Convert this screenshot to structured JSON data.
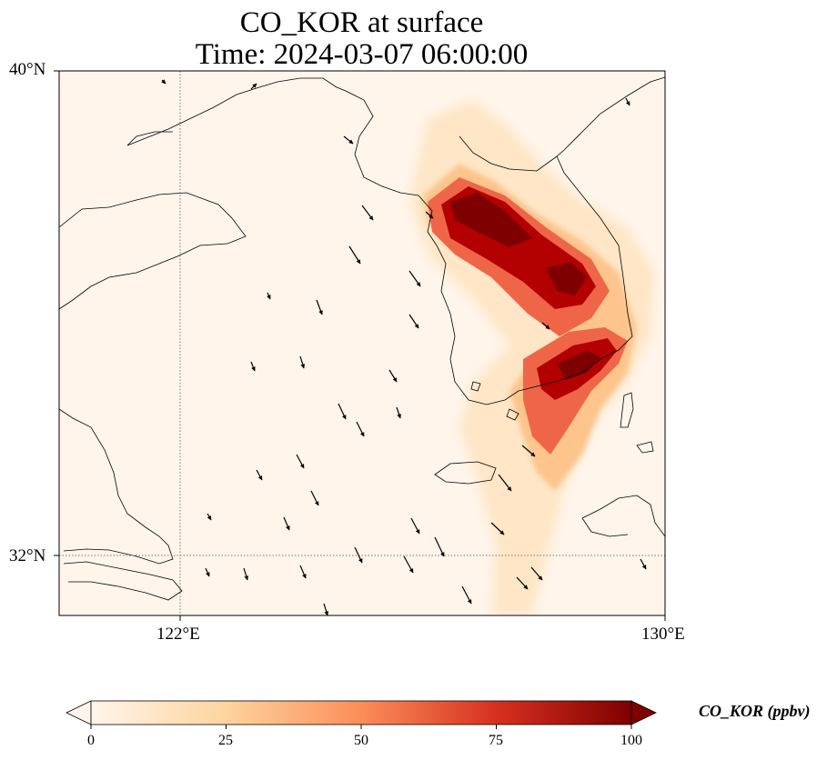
{
  "title": {
    "line1": "CO_KOR at surface",
    "line2": "Time: 2024-03-07 06:00:00"
  },
  "map": {
    "lon_range": [
      120,
      130
    ],
    "lat_range": [
      31,
      40
    ],
    "lat_ticks": [
      {
        "value": 40,
        "label": "40°N"
      },
      {
        "value": 32,
        "label": "32°N"
      }
    ],
    "lon_ticks": [
      {
        "value": 122,
        "label": "122°E"
      },
      {
        "value": 130,
        "label": "130°E"
      }
    ],
    "gridlines": "dotted",
    "background_color": "#fff5eb",
    "coastline_color": "#000000",
    "features": [
      "coastlines",
      "wind vectors",
      "CO concentration field"
    ],
    "plume_description": "High CO (≈75–100+ ppbv) over the Seoul metropolitan area extending southeast, and a second maximum over the southeastern Korean peninsula (Busan region); plume tails drift south over the sea."
  },
  "colorbar": {
    "label": "CO_KOR (ppbv)",
    "min": 0,
    "max": 100,
    "ticks": [
      "0",
      "25",
      "50",
      "75",
      "100"
    ],
    "colormap": "OrRd",
    "colors": [
      "#fff5eb",
      "#fdd49e",
      "#fc8d59",
      "#d7301f",
      "#7f0000"
    ],
    "extend": "both"
  }
}
